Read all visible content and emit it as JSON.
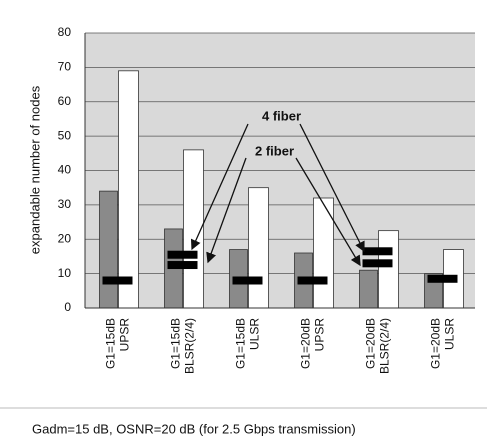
{
  "chart_data": {
    "type": "bar",
    "ylabel": "expandable number of nodes",
    "caption": "Gadm=15 dB, OSNR=20 dB (for 2.5   Gbps transmission)",
    "categories": [
      [
        "G1=15dB",
        "UPSR"
      ],
      [
        "G1=15dB",
        "BLSR(2/4)"
      ],
      [
        "G1=15dB",
        "ULSR"
      ],
      [
        "G1=20dB",
        "UPSR"
      ],
      [
        "G1=20dB",
        "BLSR(2/4)"
      ],
      [
        "G1=20dB",
        "ULSR"
      ]
    ],
    "series": [
      {
        "color": "#8a8a8a",
        "values": [
          34,
          23,
          17,
          16,
          11,
          10
        ]
      },
      {
        "color": "#ffffff",
        "values": [
          69,
          46,
          35,
          32,
          22.5,
          17
        ]
      }
    ],
    "markers": [
      {
        "color": "#000000",
        "values": [
          8,
          15.5,
          8,
          8,
          16.5,
          8.5
        ]
      },
      {
        "color": "#000000",
        "values": [
          null,
          12.5,
          null,
          null,
          13,
          null
        ]
      }
    ],
    "annotations": [
      "4 fiber",
      "2 fiber"
    ],
    "ylim": [
      0,
      80
    ],
    "yticks": [
      0,
      10,
      20,
      30,
      40,
      50,
      60,
      70,
      80
    ],
    "grid": true
  }
}
